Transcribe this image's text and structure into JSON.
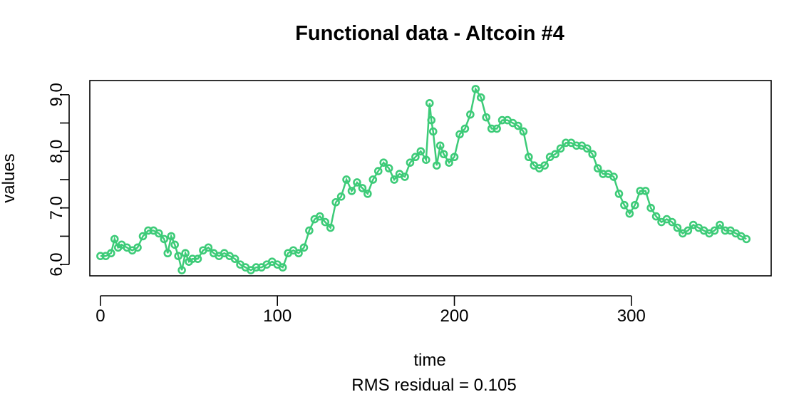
{
  "chart_data": {
    "type": "scatter",
    "title": "Functional data - Altcoin #4",
    "xlabel": "time",
    "ylabel": "values",
    "subtitle": "RMS residual = 0.105",
    "xlim": [
      -6,
      379
    ],
    "ylim": [
      5.8,
      9.25
    ],
    "x_ticks": [
      0,
      100,
      200,
      300
    ],
    "y_ticks": [
      6.0,
      6.5,
      7.0,
      7.5,
      8.0,
      8.5,
      9.0
    ],
    "y_tick_labels": [
      "6.0",
      "",
      "7.0",
      "",
      "8.0",
      "",
      "9.0"
    ],
    "grid": false,
    "legend": "none",
    "series": [
      {
        "color": "#3DCB78",
        "marker": "open-circle",
        "line": true,
        "x": [
          0,
          3,
          6,
          8,
          10,
          12,
          15,
          18,
          21,
          24,
          27,
          30,
          33,
          36,
          38,
          40,
          42,
          44,
          46,
          48,
          50,
          52,
          55,
          58,
          61,
          64,
          67,
          70,
          73,
          76,
          79,
          82,
          85,
          88,
          91,
          94,
          97,
          100,
          103,
          106,
          109,
          112,
          115,
          118,
          121,
          124,
          127,
          130,
          133,
          136,
          139,
          142,
          145,
          148,
          151,
          154,
          157,
          160,
          163,
          166,
          169,
          172,
          175,
          178,
          181,
          184,
          186,
          187,
          188,
          190,
          192,
          194,
          197,
          200,
          203,
          206,
          209,
          212,
          215,
          218,
          221,
          224,
          227,
          230,
          233,
          236,
          239,
          242,
          245,
          248,
          251,
          254,
          257,
          260,
          263,
          266,
          269,
          272,
          275,
          278,
          281,
          284,
          287,
          290,
          293,
          296,
          299,
          302,
          305,
          308,
          311,
          314,
          317,
          320,
          323,
          326,
          329,
          332,
          335,
          338,
          341,
          344,
          347,
          350,
          353,
          356,
          359,
          362,
          365
        ],
        "y": [
          6.15,
          6.15,
          6.2,
          6.45,
          6.3,
          6.35,
          6.3,
          6.25,
          6.3,
          6.5,
          6.6,
          6.6,
          6.55,
          6.45,
          6.2,
          6.5,
          6.35,
          6.15,
          5.9,
          6.2,
          6.05,
          6.1,
          6.1,
          6.25,
          6.3,
          6.2,
          6.15,
          6.2,
          6.15,
          6.1,
          6.0,
          5.95,
          5.9,
          5.95,
          5.95,
          6.0,
          6.05,
          6.0,
          5.95,
          6.2,
          6.25,
          6.2,
          6.3,
          6.6,
          6.8,
          6.85,
          6.75,
          6.65,
          7.1,
          7.2,
          7.5,
          7.3,
          7.45,
          7.35,
          7.25,
          7.5,
          7.65,
          7.8,
          7.7,
          7.5,
          7.6,
          7.55,
          7.8,
          7.9,
          8.0,
          7.85,
          8.85,
          8.55,
          8.35,
          7.75,
          8.1,
          7.95,
          7.8,
          7.9,
          8.3,
          8.4,
          8.65,
          9.1,
          8.95,
          8.6,
          8.4,
          8.4,
          8.55,
          8.55,
          8.5,
          8.45,
          8.35,
          7.9,
          7.75,
          7.7,
          7.75,
          7.9,
          7.95,
          8.05,
          8.15,
          8.15,
          8.1,
          8.1,
          8.05,
          7.95,
          7.7,
          7.6,
          7.6,
          7.55,
          7.25,
          7.05,
          6.9,
          7.05,
          7.3,
          7.3,
          7.0,
          6.85,
          6.75,
          6.8,
          6.75,
          6.65,
          6.55,
          6.6,
          6.7,
          6.65,
          6.6,
          6.55,
          6.6,
          6.7,
          6.6,
          6.6,
          6.55,
          6.5,
          6.45
        ]
      }
    ]
  }
}
